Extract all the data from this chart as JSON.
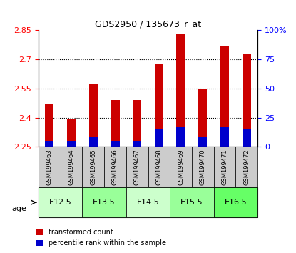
{
  "title": "GDS2950 / 135673_r_at",
  "samples": [
    "GSM199463",
    "GSM199464",
    "GSM199465",
    "GSM199466",
    "GSM199467",
    "GSM199468",
    "GSM199469",
    "GSM199470",
    "GSM199471",
    "GSM199472"
  ],
  "transformed_counts": [
    2.47,
    2.39,
    2.57,
    2.49,
    2.49,
    2.68,
    2.83,
    2.55,
    2.77,
    2.73
  ],
  "percentile_ranks": [
    5,
    5,
    8,
    5,
    5,
    15,
    17,
    8,
    17,
    15
  ],
  "base_value": 2.25,
  "ylim_left": [
    2.25,
    2.85
  ],
  "yticks_left": [
    2.25,
    2.4,
    2.55,
    2.7,
    2.85
  ],
  "ylim_right": [
    0,
    100
  ],
  "yticks_right": [
    0,
    25,
    50,
    75,
    100
  ],
  "yticklabels_right": [
    "0",
    "25",
    "50",
    "75",
    "100%"
  ],
  "bar_color_red": "#cc0000",
  "bar_color_blue": "#0000cc",
  "age_groups": [
    {
      "label": "E12.5",
      "samples": [
        0,
        1
      ],
      "color": "#ccffcc"
    },
    {
      "label": "E13.5",
      "samples": [
        2,
        3
      ],
      "color": "#99ff99"
    },
    {
      "label": "E14.5",
      "samples": [
        4,
        5
      ],
      "color": "#ccffcc"
    },
    {
      "label": "E15.5",
      "samples": [
        6,
        7
      ],
      "color": "#99ff99"
    },
    {
      "label": "E16.5",
      "samples": [
        8,
        9
      ],
      "color": "#66ff66"
    }
  ],
  "sample_box_color": "#cccccc",
  "grid_color": "#000000",
  "legend_red_label": "transformed count",
  "legend_blue_label": "percentile rank within the sample",
  "bar_width": 0.4
}
